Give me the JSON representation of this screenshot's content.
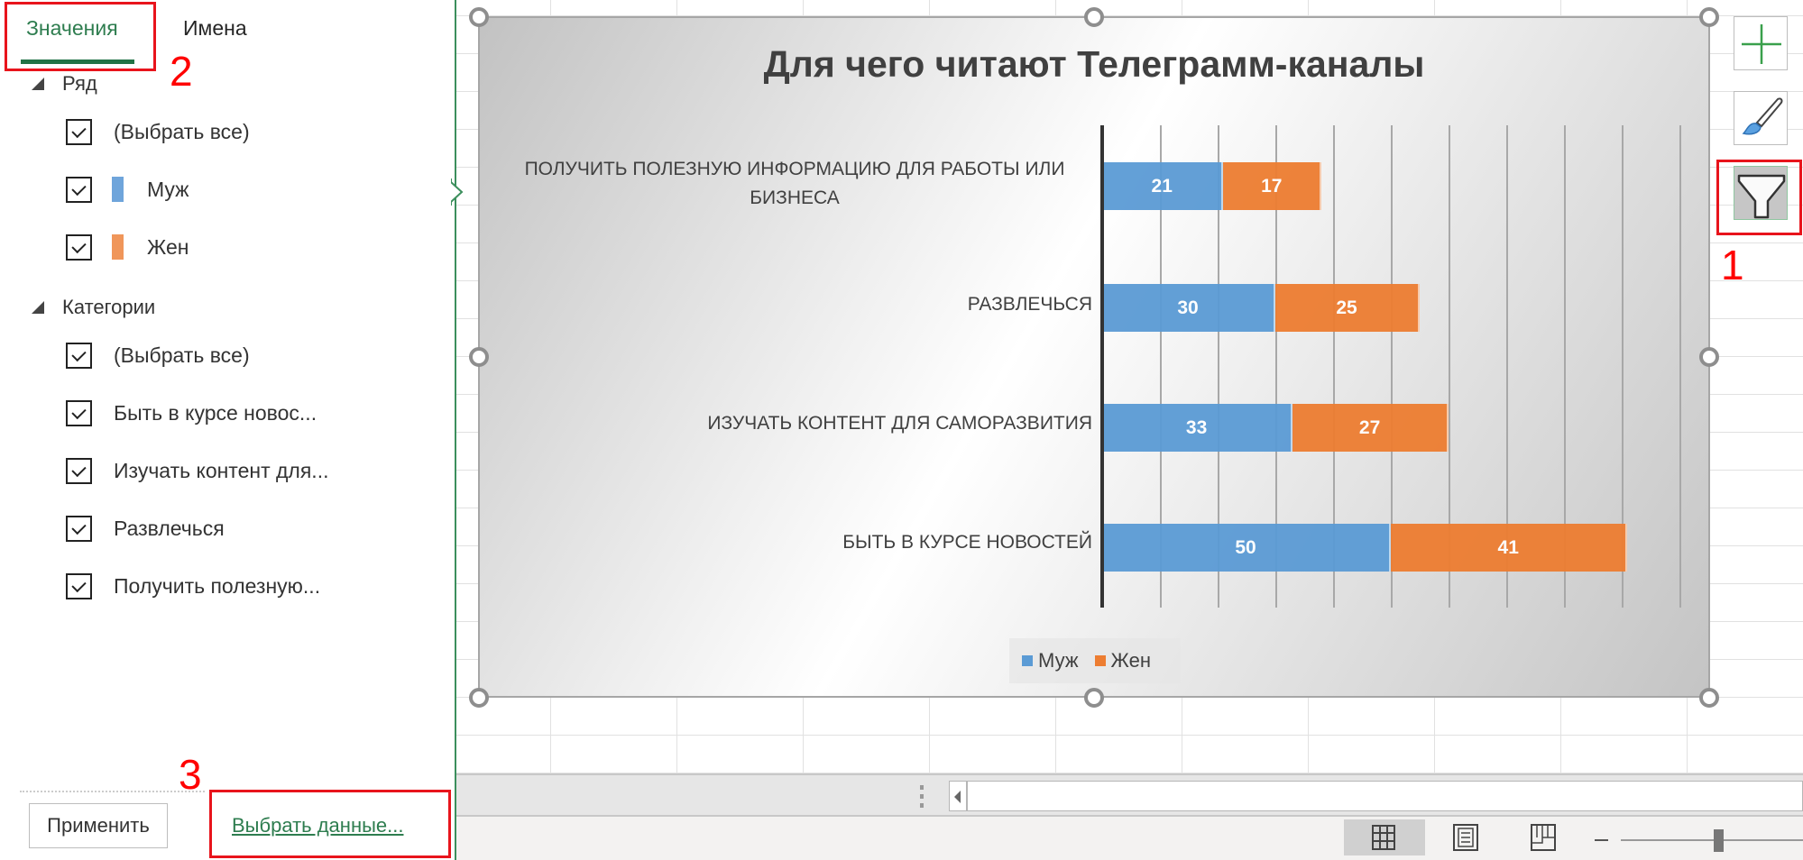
{
  "panel": {
    "tabs": [
      {
        "label": "Значения",
        "active": true
      },
      {
        "label": "Имена",
        "active": false
      }
    ],
    "series_group": {
      "label": "Ряд",
      "items": [
        {
          "label": "(Выбрать все)",
          "checked": true
        },
        {
          "label": "Муж",
          "checked": true,
          "color": "#5b9bd5"
        },
        {
          "label": "Жен",
          "checked": true,
          "color": "#ed7d31"
        }
      ]
    },
    "categories_group": {
      "label": "Категории",
      "items": [
        {
          "label": "(Выбрать все)",
          "checked": true
        },
        {
          "label": "Быть в курсе новос...",
          "checked": true
        },
        {
          "label": "Изучать контент для...",
          "checked": true
        },
        {
          "label": "Развлечься",
          "checked": true
        },
        {
          "label": "Получить полезную...",
          "checked": true
        }
      ]
    },
    "apply_button": "Применить",
    "select_data_link": "Выбрать данные..."
  },
  "annotations": {
    "n1": "1",
    "n2": "2",
    "n3": "3"
  },
  "side_buttons": [
    {
      "name": "chart-elements",
      "icon": "plus-icon"
    },
    {
      "name": "chart-styles",
      "icon": "paintbrush-icon"
    },
    {
      "name": "chart-filters",
      "icon": "funnel-icon",
      "active": true
    }
  ],
  "status_bar": {
    "views": [
      "normal-view",
      "page-layout-view",
      "page-break-view"
    ],
    "active_view": "normal-view",
    "zoom_minus": "–"
  },
  "colors": {
    "male": "#5b9bd5",
    "female": "#ed7d31",
    "accent_green": "#217346",
    "annotation_red": "#e8141c"
  },
  "chart_data": {
    "type": "bar",
    "orientation": "horizontal",
    "stacked": true,
    "title": "Для чего читают Телеграмм-каналы",
    "categories": [
      "ПОЛУЧИТЬ ПОЛЕЗНУЮ ИНФОРМАЦИЮ ДЛЯ РАБОТЫ ИЛИ БИЗНЕСА",
      "РАЗВЛЕЧЬСЯ",
      "ИЗУЧАТЬ КОНТЕНТ ДЛЯ САМОРАЗВИТИЯ",
      "БЫТЬ В КУРСЕ НОВОСТЕЙ"
    ],
    "category_lines": [
      [
        "ПОЛУЧИТЬ ПОЛЕЗНУЮ ИНФОРМАЦИЮ ДЛЯ РАБОТЫ ИЛИ",
        "БИЗНЕСА"
      ],
      [
        "РАЗВЛЕЧЬСЯ"
      ],
      [
        "ИЗУЧАТЬ КОНТЕНТ ДЛЯ САМОРАЗВИТИЯ"
      ],
      [
        "БЫТЬ В КУРСЕ НОВОСТЕЙ"
      ]
    ],
    "series": [
      {
        "name": "Муж",
        "color": "#5b9bd5",
        "values": [
          21,
          30,
          33,
          50
        ]
      },
      {
        "name": "Жен",
        "color": "#ed7d31",
        "values": [
          17,
          25,
          27,
          41
        ]
      }
    ],
    "data_labels": true,
    "xlim": [
      0,
      100
    ],
    "grid": {
      "vertical": true,
      "step": 10
    },
    "axis_tick_labels_visible": false,
    "legend": {
      "position": "bottom-left",
      "entries": [
        "Муж",
        "Жен"
      ]
    },
    "xlabel": "",
    "ylabel": ""
  }
}
